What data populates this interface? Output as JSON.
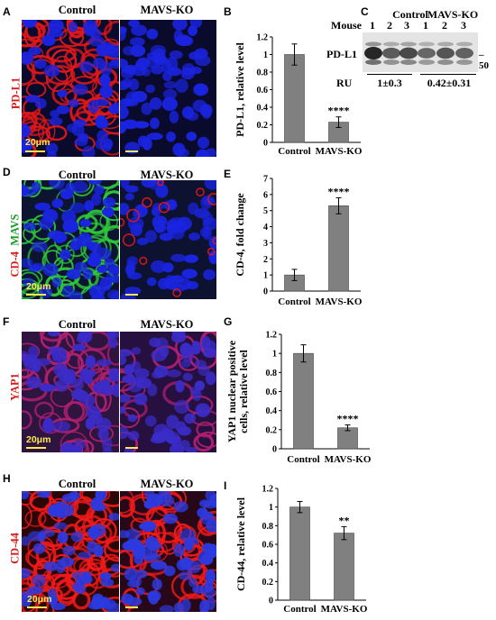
{
  "panels": {
    "A": {
      "letter": "A",
      "left_header": "Control",
      "right_header": "MAVS-KO",
      "stain_label": "PD-L1",
      "scale_label": "20μm",
      "colors": {
        "stain": "#e01818",
        "nucleus": "#1a24e0",
        "background": "#0a0a2c",
        "label": "#d81c1c"
      }
    },
    "B": {
      "letter": "B",
      "chart_data": {
        "type": "bar",
        "categories": [
          "Control",
          "MAVS-KO"
        ],
        "values": [
          1.0,
          0.23
        ],
        "errors": [
          0.12,
          0.06
        ],
        "annotations": [
          "",
          "****"
        ],
        "ylabel": "PD-L1,  relative level",
        "ylim": [
          0,
          1.2
        ],
        "yticks": [
          "0",
          "0.2",
          "0.4",
          "0.6",
          "0.8",
          "1",
          "1.2"
        ]
      }
    },
    "C": {
      "letter": "C",
      "mouse_label": "Mouse",
      "group_control": "Control",
      "group_ko": "MAVS-KO",
      "lane_numbers": [
        "1",
        "2",
        "3",
        "1",
        "2",
        "3"
      ],
      "protein_label": "PD-L1",
      "mw_label": "50",
      "ru_label": "RU",
      "ru_control": "1±0.3",
      "ru_ko": "0.42±0.31"
    },
    "D": {
      "letter": "D",
      "left_header": "Control",
      "right_header": "MAVS-KO",
      "stain_label_red": "CD-4",
      "stain_label_green": "MAVS",
      "scale_label": "20μm",
      "colors": {
        "stain": "#e01818",
        "green": "#2ec73a",
        "nucleus": "#1a24e0",
        "label_red": "#d81c1c",
        "label_green": "#1a9a2a"
      }
    },
    "E": {
      "letter": "E",
      "chart_data": {
        "type": "bar",
        "categories": [
          "Control",
          "MAVS-KO"
        ],
        "values": [
          1.0,
          5.3
        ],
        "errors": [
          0.35,
          0.5
        ],
        "annotations": [
          "",
          "****"
        ],
        "ylabel": "CD-4, fold change",
        "ylim": [
          0,
          7
        ],
        "yticks": [
          "0",
          "1",
          "2",
          "3",
          "4",
          "5",
          "6",
          "7"
        ]
      }
    },
    "F": {
      "letter": "F",
      "left_header": "Control",
      "right_header": "MAVS-KO",
      "stain_label": "YAP1",
      "scale_label": "20μm",
      "colors": {
        "stain": "#b02070",
        "nucleus": "#3a2cc8",
        "label": "#d81c1c"
      }
    },
    "G": {
      "letter": "G",
      "chart_data": {
        "type": "bar",
        "categories": [
          "Control",
          "MAVS-KO"
        ],
        "values": [
          1.0,
          0.22
        ],
        "errors": [
          0.09,
          0.03
        ],
        "annotations": [
          "",
          "****"
        ],
        "ylabel_line1": "YAP1 nuclear positive",
        "ylabel_line2": "cells, relative level",
        "ylim": [
          0,
          1.2
        ],
        "yticks": [
          "0",
          "0.2",
          "0.4",
          "0.6",
          "0.8",
          "1",
          "1.2"
        ]
      }
    },
    "H": {
      "letter": "H",
      "left_header": "Control",
      "right_header": "MAVS-KO",
      "stain_label": "CD-44",
      "scale_label": "20μm",
      "colors": {
        "stain": "#f01a1a",
        "nucleus": "#2b3ae0",
        "label": "#d81c1c"
      }
    },
    "I": {
      "letter": "I",
      "chart_data": {
        "type": "bar",
        "categories": [
          "Control",
          "MAVS-KO"
        ],
        "values": [
          1.0,
          0.72
        ],
        "errors": [
          0.06,
          0.07
        ],
        "annotations": [
          "",
          "**"
        ],
        "ylabel": "CD-44,  relative level",
        "ylim": [
          0,
          1.2
        ],
        "yticks": [
          "0",
          "0.2",
          "0.4",
          "0.6",
          "0.8",
          "1",
          "1.2"
        ]
      }
    }
  },
  "bar_color": "#808080"
}
